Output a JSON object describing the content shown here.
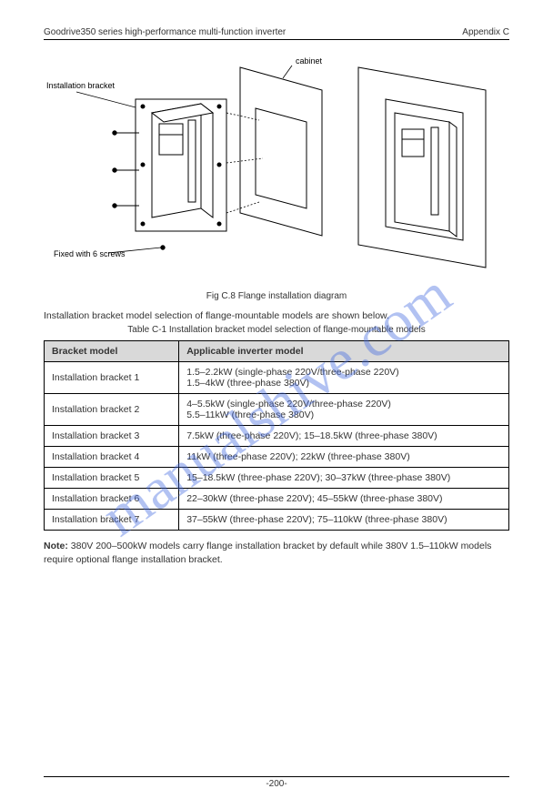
{
  "header": {
    "left": "Goodrive350 series high-performance multi-function inverter",
    "right": "Appendix C"
  },
  "watermark": "manualshive.com",
  "figure": {
    "labels": {
      "bracket": "Installation bracket",
      "screw": "Fixed with 6 screws",
      "cabinet": "cabinet"
    },
    "caption": "Fig C.8 Flange installation diagram"
  },
  "intro": "Installation bracket model selection of flange-mountable models are shown below.",
  "tableCaption": "Table C-1 Installation bracket model selection of flange-mountable models",
  "table": {
    "columns": [
      "Bracket model",
      "Applicable inverter model"
    ],
    "rows": [
      [
        "Installation bracket 1",
        "1.5–2.2kW (single-phase 220V/three-phase 220V)\n1.5–4kW (three-phase 380V)"
      ],
      [
        "Installation bracket 2",
        "4–5.5kW (single-phase 220V/three-phase 220V)\n5.5–11kW (three-phase 380V)"
      ],
      [
        "Installation bracket 3",
        "7.5kW (three-phase 220V); 15–18.5kW (three-phase 380V)"
      ],
      [
        "Installation bracket 4",
        "11kW (three-phase 220V); 22kW (three-phase 380V)"
      ],
      [
        "Installation bracket 5",
        "15–18.5kW (three-phase 220V); 30–37kW (three-phase 380V)"
      ],
      [
        "Installation bracket 6",
        "22–30kW (three-phase 220V); 45–55kW (three-phase 380V)"
      ],
      [
        "Installation bracket 7",
        "37–55kW (three-phase 220V); 75–110kW (three-phase 380V)"
      ]
    ]
  },
  "note": {
    "label": "Note:",
    "body": " 380V 200–500kW models carry flange installation bracket by default while 380V 1.5–110kW models require optional flange installation bracket."
  },
  "footer": "-200-"
}
